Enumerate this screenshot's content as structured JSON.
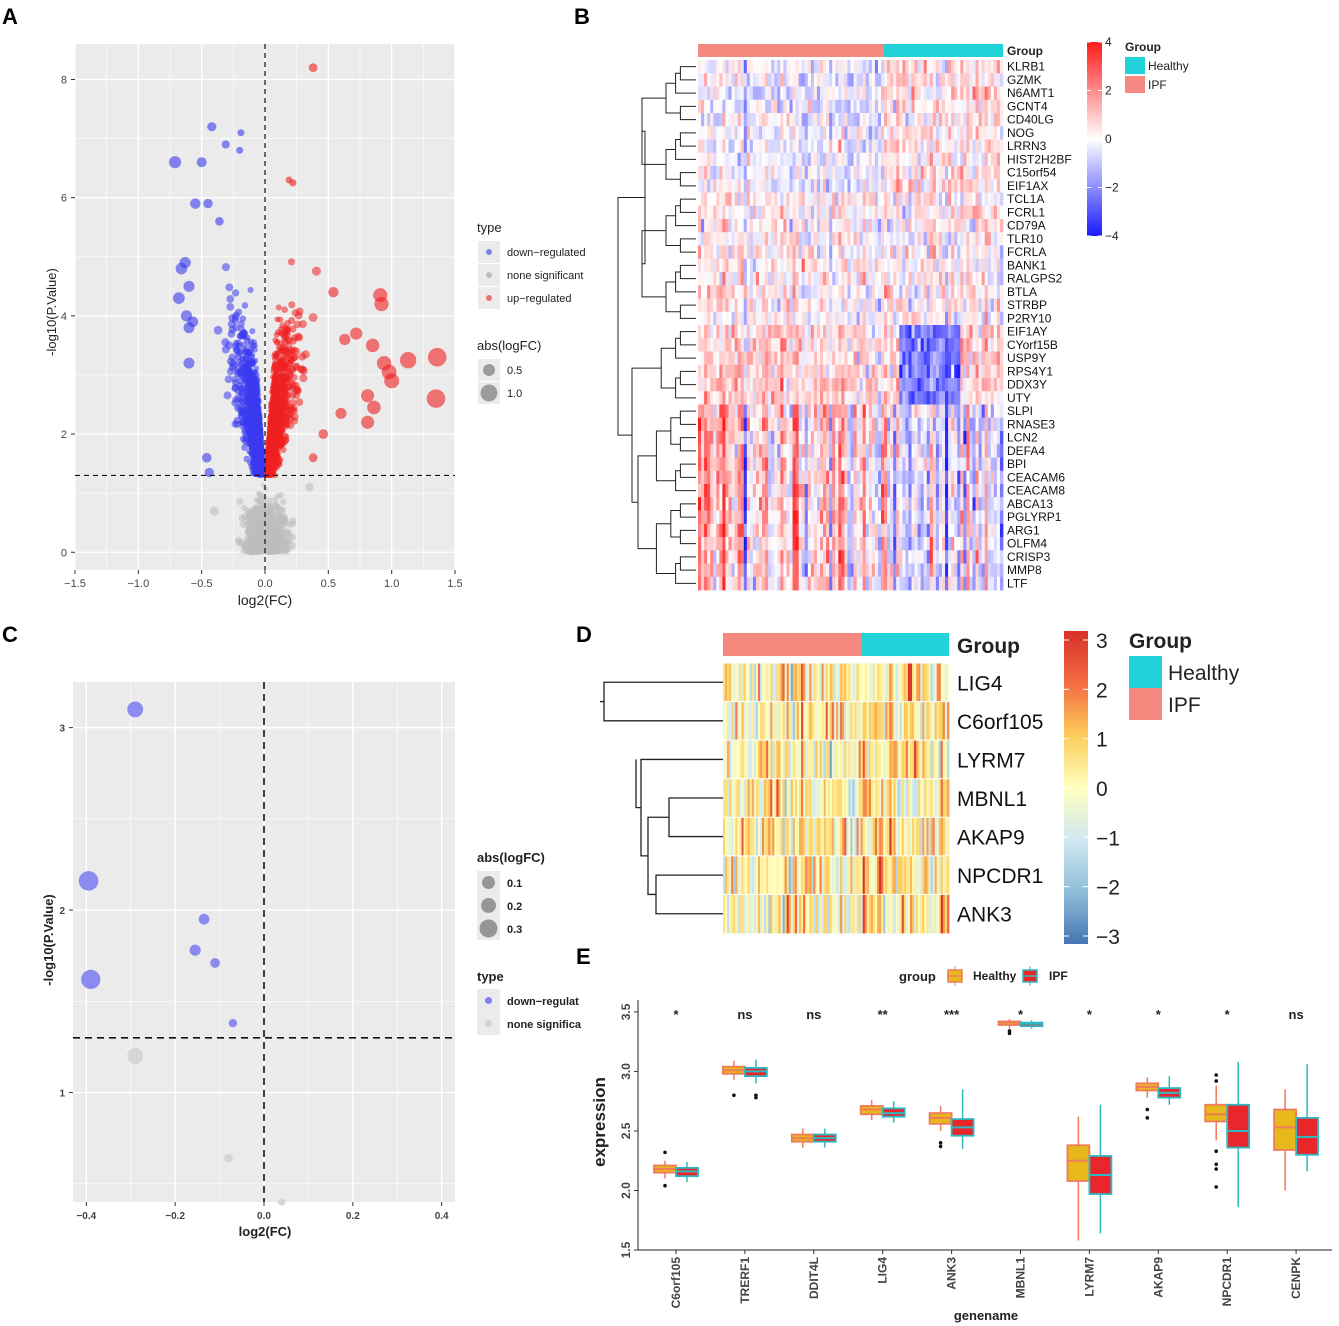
{
  "panels": {
    "A": "A",
    "B": "B",
    "C": "C",
    "D": "D",
    "E": "E"
  },
  "colors": {
    "panel_bg": "#EBEBEB",
    "grid": "#FFFFFF",
    "down": "#3A3AF0",
    "up": "#F02020",
    "none": "#BDBDBD",
    "heat_hi": "#FF1A1A",
    "heat_lo": "#1A1AFF",
    "healthy": "#1FD3D8",
    "ipf": "#F5897F",
    "box_healthy_fill": "#E6B81C",
    "box_healthy_line": "#F07B5A",
    "box_ipf_fill": "#E8262B",
    "box_ipf_line": "#2FB8C4"
  },
  "chart_data": [
    {
      "id": "A",
      "type": "scatter",
      "xlabel": "log2(FC)",
      "ylabel": "-log10(P.Value)",
      "xlim": [
        -1.5,
        1.5
      ],
      "ylim": [
        -0.3,
        8.6
      ],
      "xticks": [
        -1.5,
        -1.0,
        -0.5,
        0.0,
        0.5,
        1.0,
        1.5
      ],
      "xtick_labels": [
        "−1.5",
        "−1.0",
        "−0.5",
        "0.0",
        "0.5",
        "1.0",
        "1.5"
      ],
      "yticks": [
        0,
        2,
        4,
        6,
        8
      ],
      "ytick_labels": [
        "0",
        "2",
        "4",
        "6",
        "8"
      ],
      "vline_x": 0,
      "hline_y": 1.3,
      "legend": {
        "type_title": "type",
        "type_items": [
          "down−regulated",
          "none significant",
          "up−regulated"
        ],
        "size_title": "abs(logFC)",
        "size_items": [
          "0.5",
          "1.0"
        ]
      },
      "highlight_points": [
        {
          "x": 0.38,
          "y": 8.2,
          "g": "up"
        },
        {
          "x": -0.42,
          "y": 7.2,
          "g": "down"
        },
        {
          "x": -0.19,
          "y": 7.1,
          "g": "down"
        },
        {
          "x": -0.31,
          "y": 6.9,
          "g": "down"
        },
        {
          "x": -0.71,
          "y": 6.6,
          "g": "down"
        },
        {
          "x": -0.5,
          "y": 6.6,
          "g": "down"
        },
        {
          "x": -0.2,
          "y": 6.8,
          "g": "down"
        },
        {
          "x": 0.19,
          "y": 6.3,
          "g": "up"
        },
        {
          "x": 0.22,
          "y": 6.25,
          "g": "up"
        },
        {
          "x": -0.55,
          "y": 5.9,
          "g": "down"
        },
        {
          "x": -0.45,
          "y": 5.9,
          "g": "down"
        },
        {
          "x": -0.36,
          "y": 5.6,
          "g": "down"
        },
        {
          "x": -0.63,
          "y": 4.9,
          "g": "down"
        },
        {
          "x": -0.66,
          "y": 4.8,
          "g": "down"
        },
        {
          "x": -0.68,
          "y": 4.3,
          "g": "down"
        },
        {
          "x": -0.6,
          "y": 4.5,
          "g": "down"
        },
        {
          "x": -0.62,
          "y": 4.0,
          "g": "down"
        },
        {
          "x": -0.57,
          "y": 3.9,
          "g": "down"
        },
        {
          "x": -0.6,
          "y": 3.8,
          "g": "down"
        },
        {
          "x": -0.6,
          "y": 3.2,
          "g": "down"
        },
        {
          "x": 0.54,
          "y": 4.4,
          "g": "up"
        },
        {
          "x": 0.91,
          "y": 4.35,
          "g": "up"
        },
        {
          "x": 0.92,
          "y": 4.2,
          "g": "up"
        },
        {
          "x": 0.72,
          "y": 3.7,
          "g": "up"
        },
        {
          "x": 0.63,
          "y": 3.6,
          "g": "up"
        },
        {
          "x": 0.85,
          "y": 3.5,
          "g": "up"
        },
        {
          "x": 1.13,
          "y": 3.25,
          "g": "up"
        },
        {
          "x": 1.36,
          "y": 3.3,
          "g": "up"
        },
        {
          "x": 0.98,
          "y": 3.05,
          "g": "up"
        },
        {
          "x": 0.94,
          "y": 3.2,
          "g": "up"
        },
        {
          "x": 1.0,
          "y": 2.9,
          "g": "up"
        },
        {
          "x": 0.81,
          "y": 2.65,
          "g": "up"
        },
        {
          "x": 0.86,
          "y": 2.45,
          "g": "up"
        },
        {
          "x": 0.81,
          "y": 2.2,
          "g": "up"
        },
        {
          "x": 1.35,
          "y": 2.6,
          "g": "up"
        },
        {
          "x": 0.6,
          "y": 2.35,
          "g": "up"
        },
        {
          "x": 0.46,
          "y": 2.0,
          "g": "up"
        },
        {
          "x": 0.38,
          "y": 1.6,
          "g": "up"
        },
        {
          "x": -0.46,
          "y": 1.6,
          "g": "down"
        },
        {
          "x": -0.44,
          "y": 1.35,
          "g": "down"
        },
        {
          "x": 0.35,
          "y": 1.1,
          "g": "none"
        },
        {
          "x": -0.4,
          "y": 0.7,
          "g": "none"
        }
      ]
    },
    {
      "id": "B",
      "type": "heatmap",
      "column_group_label": "Group",
      "genes": [
        "KLRB1",
        "GZMK",
        "N6AMT1",
        "GCNT4",
        "CD40LG",
        "NOG",
        "LRRN3",
        "HIST2H2BF",
        "C15orf54",
        "EIF1AX",
        "TCL1A",
        "FCRL1",
        "CD79A",
        "TLR10",
        "FCRLA",
        "BANK1",
        "RALGPS2",
        "BTLA",
        "STRBP",
        "P2RY10",
        "EIF1AY",
        "CYorf15B",
        "USP9Y",
        "RPS4Y1",
        "DDX3Y",
        "UTY",
        "SLPI",
        "RNASE3",
        "LCN2",
        "DEFA4",
        "BPI",
        "CEACAM6",
        "CEACAM8",
        "ABCA13",
        "PGLYRP1",
        "ARG1",
        "OLFM4",
        "CRISP3",
        "MMP8",
        "LTF"
      ],
      "group_sizes": {
        "IPF": 0.61,
        "Healthy": 0.39
      },
      "colorbar": {
        "ticks": [
          4,
          2,
          0,
          -2,
          -4
        ],
        "tick_labels": [
          "4",
          "2",
          "0",
          "−2",
          "−4"
        ]
      },
      "legend": {
        "title": "Group",
        "items": [
          "Healthy",
          "IPF"
        ]
      }
    },
    {
      "id": "C",
      "type": "scatter",
      "xlabel": "log2(FC)",
      "ylabel": "-log10(P.Value)",
      "xlim": [
        -0.43,
        0.43
      ],
      "ylim": [
        0.4,
        3.25
      ],
      "xticks": [
        -0.4,
        -0.2,
        0.0,
        0.2,
        0.4
      ],
      "xtick_labels": [
        "−0.4",
        "−0.2",
        "0.0",
        "0.2",
        "0.4"
      ],
      "yticks": [
        1,
        2,
        3
      ],
      "ytick_labels": [
        "1",
        "2",
        "3"
      ],
      "vline_x": 0,
      "hline_y": 1.3,
      "points": [
        {
          "x": -0.29,
          "y": 3.1,
          "s": 0.29,
          "g": "down"
        },
        {
          "x": -0.395,
          "y": 2.16,
          "s": 0.4,
          "g": "down"
        },
        {
          "x": -0.39,
          "y": 1.62,
          "s": 0.39,
          "g": "down"
        },
        {
          "x": -0.135,
          "y": 1.95,
          "s": 0.14,
          "g": "down"
        },
        {
          "x": -0.155,
          "y": 1.78,
          "s": 0.15,
          "g": "down"
        },
        {
          "x": -0.11,
          "y": 1.71,
          "s": 0.11,
          "g": "down"
        },
        {
          "x": -0.07,
          "y": 1.38,
          "s": 0.07,
          "g": "down"
        },
        {
          "x": -0.29,
          "y": 1.2,
          "s": 0.29,
          "g": "none"
        },
        {
          "x": -0.08,
          "y": 0.64,
          "s": 0.08,
          "g": "none"
        },
        {
          "x": 0.04,
          "y": 0.4,
          "s": 0.04,
          "g": "none"
        }
      ],
      "legend": {
        "size_title": "abs(logFC)",
        "size_items": [
          "0.1",
          "0.2",
          "0.3"
        ],
        "type_title": "type",
        "type_items": [
          "down−regulat",
          "none significa"
        ]
      }
    },
    {
      "id": "D",
      "type": "heatmap",
      "column_group_label": "Group",
      "genes": [
        "LIG4",
        "C6orf105",
        "LYRM7",
        "MBNL1",
        "AKAP9",
        "NPCDR1",
        "ANK3"
      ],
      "group_sizes": {
        "IPF": 0.6,
        "Healthy": 0.4
      },
      "colorbar": {
        "ticks": [
          3,
          2,
          1,
          0,
          -1,
          -2,
          -3
        ],
        "tick_labels": [
          "3",
          "2",
          "1",
          "0",
          "−1",
          "−2",
          "−3"
        ]
      },
      "legend": {
        "title": "Group",
        "items": [
          "Healthy",
          "IPF"
        ]
      }
    },
    {
      "id": "E",
      "type": "box",
      "xlabel": "genename",
      "ylabel": "expression",
      "ylim": [
        1.5,
        3.6
      ],
      "yticks": [
        1.5,
        2.0,
        2.5,
        3.0,
        3.5
      ],
      "ytick_labels": [
        "1.5",
        "2.0",
        "2.5",
        "3.0",
        "3.5"
      ],
      "legend": {
        "title": "group",
        "items": [
          "Healthy",
          "IPF"
        ]
      },
      "categories": [
        "C6orf105",
        "TRERF1",
        "DDIT4L",
        "LIG4",
        "ANK3",
        "MBNL1",
        "LYRM7",
        "AKAP9",
        "NPCDR1",
        "CENPK"
      ],
      "significance": [
        "*",
        "ns",
        "ns",
        "**",
        "***",
        "*",
        "*",
        "*",
        "*",
        "ns"
      ],
      "series": [
        {
          "name": "Healthy",
          "boxes": [
            [
              2.1,
              2.15,
              2.18,
              2.21,
              2.25
            ],
            [
              2.93,
              2.98,
              3.01,
              3.04,
              3.09
            ],
            [
              2.36,
              2.41,
              2.44,
              2.47,
              2.52
            ],
            [
              2.59,
              2.64,
              2.68,
              2.71,
              2.76
            ],
            [
              2.5,
              2.56,
              2.61,
              2.65,
              2.71
            ],
            [
              3.36,
              3.39,
              3.41,
              3.42,
              3.44
            ],
            [
              1.58,
              2.08,
              2.25,
              2.38,
              2.62
            ],
            [
              2.78,
              2.84,
              2.87,
              2.9,
              2.95
            ],
            [
              2.42,
              2.58,
              2.64,
              2.72,
              2.88
            ],
            [
              2.0,
              2.34,
              2.53,
              2.68,
              2.85
            ]
          ]
        },
        {
          "name": "IPF",
          "boxes": [
            [
              2.07,
              2.12,
              2.16,
              2.19,
              2.24
            ],
            [
              2.9,
              2.96,
              3.0,
              3.03,
              3.1
            ],
            [
              2.36,
              2.41,
              2.44,
              2.47,
              2.52
            ],
            [
              2.57,
              2.62,
              2.65,
              2.69,
              2.75
            ],
            [
              2.35,
              2.46,
              2.53,
              2.6,
              2.85
            ],
            [
              3.36,
              3.38,
              3.4,
              3.41,
              3.43
            ],
            [
              1.64,
              1.97,
              2.13,
              2.29,
              2.72
            ],
            [
              2.72,
              2.78,
              2.82,
              2.86,
              2.96
            ],
            [
              1.86,
              2.36,
              2.5,
              2.72,
              3.08
            ],
            [
              2.16,
              2.3,
              2.45,
              2.61,
              3.06
            ]
          ]
        }
      ],
      "outliers": [
        {
          "cat": 0,
          "s": 0,
          "y": 2.32
        },
        {
          "cat": 0,
          "s": 0,
          "y": 2.04
        },
        {
          "cat": 1,
          "s": 0,
          "y": 2.8
        },
        {
          "cat": 1,
          "s": 1,
          "y": 2.8
        },
        {
          "cat": 1,
          "s": 1,
          "y": 2.78
        },
        {
          "cat": 4,
          "s": 0,
          "y": 2.4
        },
        {
          "cat": 4,
          "s": 0,
          "y": 2.37
        },
        {
          "cat": 5,
          "s": 0,
          "y": 3.32
        },
        {
          "cat": 5,
          "s": 0,
          "y": 3.34
        },
        {
          "cat": 7,
          "s": 0,
          "y": 2.68
        },
        {
          "cat": 7,
          "s": 0,
          "y": 2.61
        },
        {
          "cat": 8,
          "s": 0,
          "y": 2.97
        },
        {
          "cat": 8,
          "s": 0,
          "y": 2.92
        },
        {
          "cat": 8,
          "s": 0,
          "y": 2.33
        },
        {
          "cat": 8,
          "s": 0,
          "y": 2.22
        },
        {
          "cat": 8,
          "s": 0,
          "y": 2.18
        },
        {
          "cat": 8,
          "s": 0,
          "y": 2.03
        }
      ]
    }
  ]
}
